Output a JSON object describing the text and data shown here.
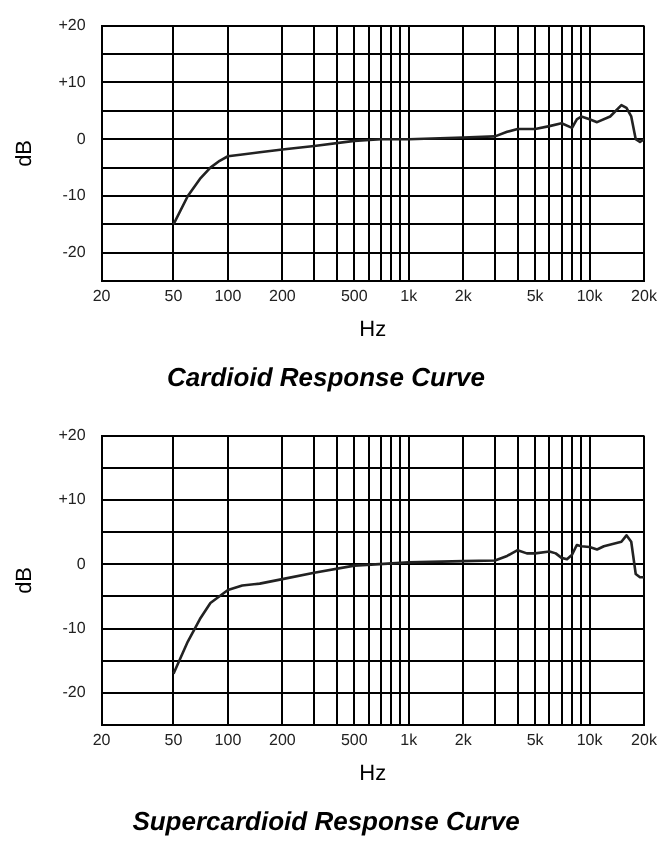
{
  "chart_data": [
    {
      "type": "line",
      "title": "Cardioid Response Curve",
      "xlabel": "Hz",
      "ylabel": "dB",
      "log": "x",
      "grid": true,
      "legend": false,
      "marker": "none",
      "line_style": "solid",
      "xlim": [
        20,
        20000
      ],
      "ylim": [
        -25,
        20
      ],
      "xticks": [
        20,
        50,
        100,
        200,
        {
          "value": 300,
          "label": null
        },
        {
          "value": 400,
          "label": null
        },
        500,
        {
          "value": 600,
          "label": null
        },
        {
          "value": 700,
          "label": null
        },
        {
          "value": 800,
          "label": null
        },
        {
          "value": 900,
          "label": null
        },
        {
          "value": 1000,
          "label": "1k"
        },
        {
          "value": 2000,
          "label": "2k"
        },
        {
          "value": 3000,
          "label": null
        },
        {
          "value": 4000,
          "label": null
        },
        {
          "value": 5000,
          "label": "5k"
        },
        {
          "value": 6000,
          "label": null
        },
        {
          "value": 7000,
          "label": null
        },
        {
          "value": 8000,
          "label": null
        },
        {
          "value": 9000,
          "label": null
        },
        {
          "value": 10000,
          "label": "10k"
        },
        {
          "value": 20000,
          "label": "20k"
        }
      ],
      "yticks": [
        {
          "value": -25,
          "label": null
        },
        -20,
        {
          "value": -15,
          "label": null
        },
        -10,
        {
          "value": -5,
          "label": null
        },
        0,
        {
          "value": 5,
          "label": null
        },
        {
          "value": 10,
          "label": "+10"
        },
        {
          "value": 15,
          "label": null
        },
        {
          "value": 20,
          "label": "+20"
        }
      ],
      "series": [
        {
          "color": "#222222",
          "x": [
            50,
            60,
            70,
            80,
            90,
            100,
            120,
            150,
            200,
            300,
            500,
            700,
            1000,
            2000,
            3000,
            3500,
            4000,
            5000,
            6000,
            7000,
            8000,
            8500,
            9000,
            10000,
            11000,
            13000,
            15000,
            16000,
            17000,
            18000,
            19000,
            20000
          ],
          "values": [
            -15,
            -10,
            -7,
            -5,
            -3.8,
            -3,
            -2.7,
            -2.3,
            -1.8,
            -1.2,
            -0.3,
            0,
            0,
            0.3,
            0.5,
            1.3,
            1.8,
            1.8,
            2.3,
            2.8,
            2,
            3.5,
            4,
            3.5,
            3,
            4,
            6,
            5.5,
            4,
            0,
            -0.5,
            0
          ]
        }
      ]
    },
    {
      "type": "line",
      "title": "Supercardioid Response Curve",
      "xlabel": "Hz",
      "ylabel": "dB",
      "log": "x",
      "grid": true,
      "legend": false,
      "marker": "none",
      "line_style": "solid",
      "xlim": [
        20,
        20000
      ],
      "ylim": [
        -25,
        20
      ],
      "xticks": [
        20,
        50,
        100,
        200,
        {
          "value": 300,
          "label": null
        },
        {
          "value": 400,
          "label": null
        },
        500,
        {
          "value": 600,
          "label": null
        },
        {
          "value": 700,
          "label": null
        },
        {
          "value": 800,
          "label": null
        },
        {
          "value": 900,
          "label": null
        },
        {
          "value": 1000,
          "label": "1k"
        },
        {
          "value": 2000,
          "label": "2k"
        },
        {
          "value": 3000,
          "label": null
        },
        {
          "value": 4000,
          "label": null
        },
        {
          "value": 5000,
          "label": "5k"
        },
        {
          "value": 6000,
          "label": null
        },
        {
          "value": 7000,
          "label": null
        },
        {
          "value": 8000,
          "label": null
        },
        {
          "value": 9000,
          "label": null
        },
        {
          "value": 10000,
          "label": "10k"
        },
        {
          "value": 20000,
          "label": "20k"
        }
      ],
      "yticks": [
        {
          "value": -25,
          "label": null
        },
        -20,
        {
          "value": -15,
          "label": null
        },
        -10,
        {
          "value": -5,
          "label": null
        },
        0,
        {
          "value": 5,
          "label": null
        },
        {
          "value": 10,
          "label": "+10"
        },
        {
          "value": 15,
          "label": null
        },
        {
          "value": 20,
          "label": "+20"
        }
      ],
      "series": [
        {
          "color": "#222222",
          "x": [
            50,
            60,
            70,
            80,
            100,
            120,
            150,
            200,
            300,
            500,
            1000,
            2000,
            3000,
            3500,
            4000,
            4500,
            5000,
            6000,
            6500,
            7000,
            7500,
            8000,
            8500,
            9000,
            10000,
            11000,
            12000,
            15000,
            16000,
            17000,
            18000,
            19000,
            20000
          ],
          "values": [
            -17,
            -12,
            -8.5,
            -6,
            -4,
            -3.3,
            -3,
            -2.3,
            -1.3,
            -0.2,
            0.3,
            0.5,
            0.6,
            1.3,
            2.2,
            1.7,
            1.7,
            2,
            1.7,
            1,
            0.8,
            1.5,
            3,
            2.8,
            2.7,
            2.3,
            2.8,
            3.5,
            4.5,
            3.5,
            -1.5,
            -2,
            -2
          ]
        }
      ]
    }
  ]
}
